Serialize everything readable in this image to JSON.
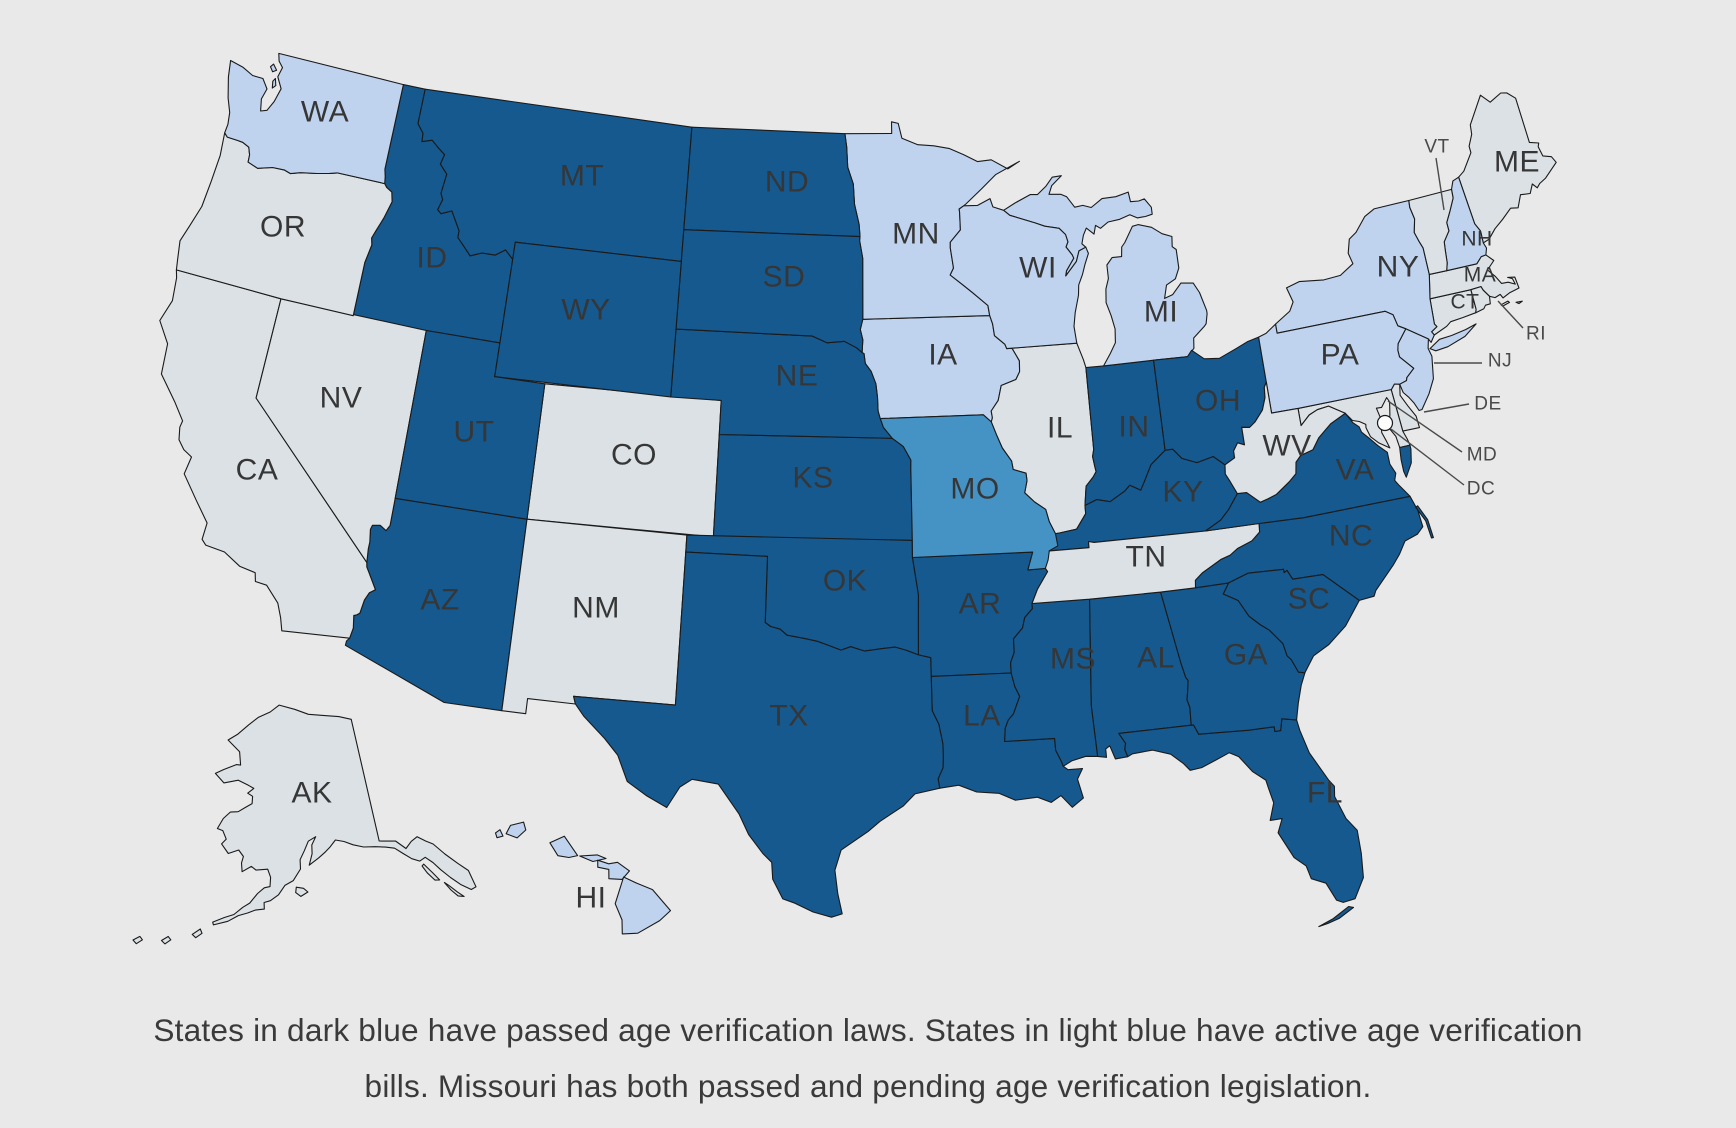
{
  "figure": {
    "caption": {
      "line1": "States in dark blue have passed age verification laws. States in light blue have active age verification",
      "line2": "bills. Missouri has both passed and pending age verification legislation."
    }
  },
  "colors": {
    "passed": "#15598F",
    "active": "#BFD3EE",
    "both": "#4592C5",
    "none": "#DBE1E4",
    "background": "#E9E9E9",
    "border": "#1A1A1A",
    "label": "#363636",
    "callout": "#4A4A4A",
    "dc_dot": "#FDFDFD"
  },
  "states": [
    {
      "abbr": "AK",
      "status": "none"
    },
    {
      "abbr": "AL",
      "status": "passed"
    },
    {
      "abbr": "AR",
      "status": "passed"
    },
    {
      "abbr": "AZ",
      "status": "passed"
    },
    {
      "abbr": "CA",
      "status": "none"
    },
    {
      "abbr": "CO",
      "status": "none"
    },
    {
      "abbr": "CT",
      "status": "none"
    },
    {
      "abbr": "DC",
      "status": "none"
    },
    {
      "abbr": "DE",
      "status": "none"
    },
    {
      "abbr": "FL",
      "status": "passed"
    },
    {
      "abbr": "GA",
      "status": "passed"
    },
    {
      "abbr": "HI",
      "status": "active"
    },
    {
      "abbr": "IA",
      "status": "active"
    },
    {
      "abbr": "ID",
      "status": "passed"
    },
    {
      "abbr": "IL",
      "status": "none"
    },
    {
      "abbr": "IN",
      "status": "passed"
    },
    {
      "abbr": "KS",
      "status": "passed"
    },
    {
      "abbr": "KY",
      "status": "passed"
    },
    {
      "abbr": "LA",
      "status": "passed"
    },
    {
      "abbr": "MA",
      "status": "none"
    },
    {
      "abbr": "MD",
      "status": "none"
    },
    {
      "abbr": "ME",
      "status": "none"
    },
    {
      "abbr": "MI",
      "status": "active"
    },
    {
      "abbr": "MN",
      "status": "active"
    },
    {
      "abbr": "MO",
      "status": "both"
    },
    {
      "abbr": "MS",
      "status": "passed"
    },
    {
      "abbr": "MT",
      "status": "passed"
    },
    {
      "abbr": "NC",
      "status": "passed"
    },
    {
      "abbr": "ND",
      "status": "passed"
    },
    {
      "abbr": "NE",
      "status": "passed"
    },
    {
      "abbr": "NH",
      "status": "active"
    },
    {
      "abbr": "NJ",
      "status": "active"
    },
    {
      "abbr": "NM",
      "status": "none"
    },
    {
      "abbr": "NV",
      "status": "none"
    },
    {
      "abbr": "NY",
      "status": "active"
    },
    {
      "abbr": "OH",
      "status": "passed"
    },
    {
      "abbr": "OK",
      "status": "passed"
    },
    {
      "abbr": "OR",
      "status": "none"
    },
    {
      "abbr": "PA",
      "status": "active"
    },
    {
      "abbr": "RI",
      "status": "none"
    },
    {
      "abbr": "SC",
      "status": "passed"
    },
    {
      "abbr": "SD",
      "status": "passed"
    },
    {
      "abbr": "TN",
      "status": "none"
    },
    {
      "abbr": "TX",
      "status": "passed"
    },
    {
      "abbr": "UT",
      "status": "passed"
    },
    {
      "abbr": "VA",
      "status": "passed"
    },
    {
      "abbr": "VT",
      "status": "none"
    },
    {
      "abbr": "WA",
      "status": "active"
    },
    {
      "abbr": "WI",
      "status": "active"
    },
    {
      "abbr": "WV",
      "status": "none"
    },
    {
      "abbr": "WY",
      "status": "passed"
    }
  ]
}
